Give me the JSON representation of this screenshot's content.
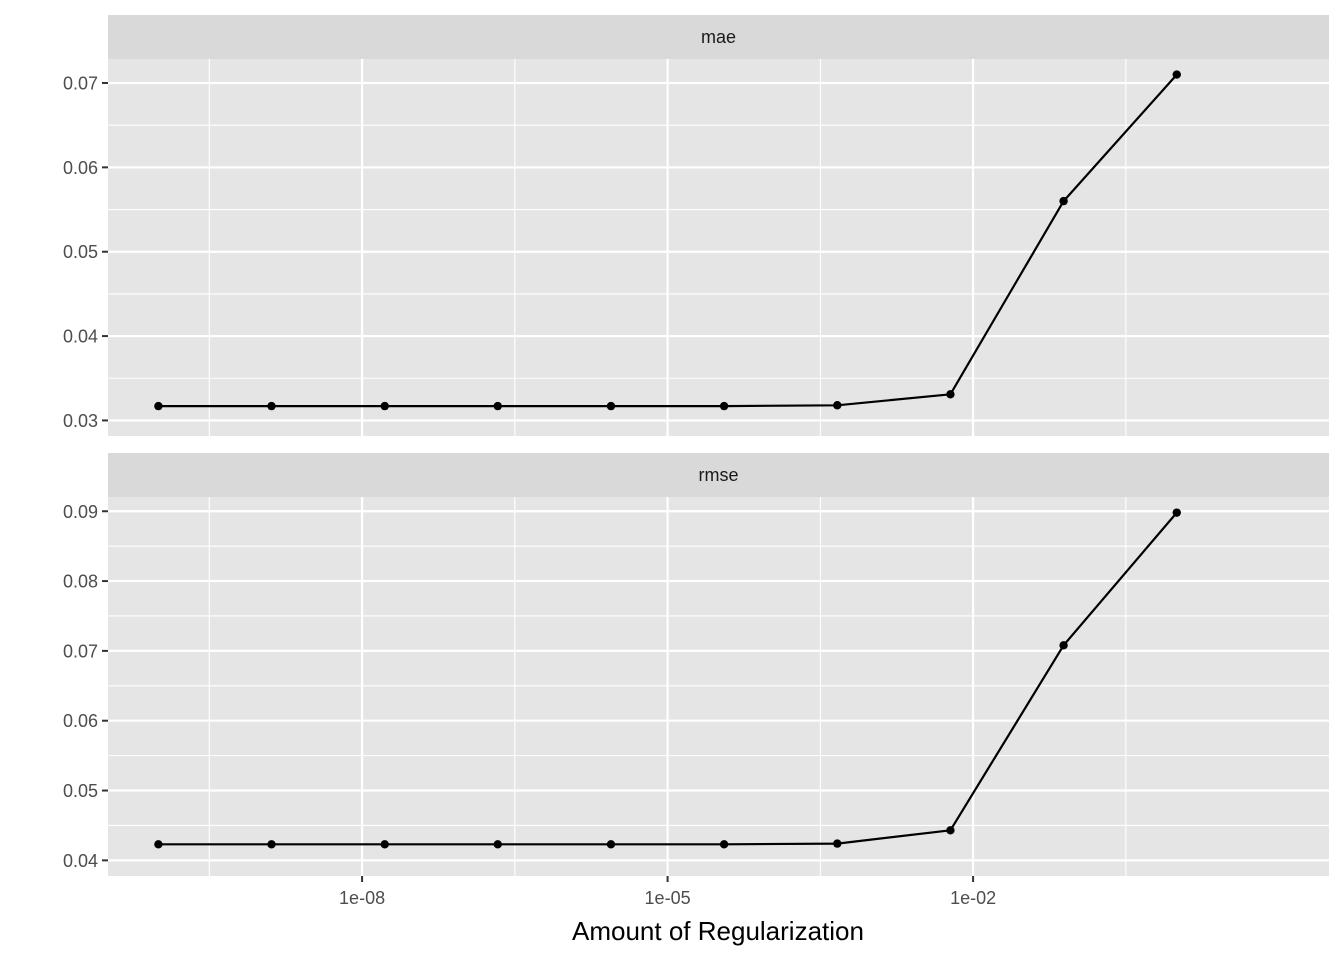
{
  "chart_data": {
    "type": "line",
    "facet_layout": "stacked vertically, shared x axis",
    "xlabel": "Amount of Regularization",
    "ylabel": "",
    "x_scale": "log10",
    "x_ticks": [
      1e-08,
      1e-05,
      0.01
    ],
    "x_tick_labels": [
      "1e-08",
      "1e-05",
      "1e-02"
    ],
    "xlim": [
      1e-10,
      10
    ],
    "x": [
      1e-10,
      1.29e-09,
      1.67e-08,
      2.15e-07,
      2.78e-06,
      3.59e-05,
      0.000464,
      0.00599,
      0.0774,
      1.0
    ],
    "grid": true,
    "legend": "none",
    "colors": {
      "panel_background": "#e5e5e5",
      "strip_background": "#d9d9d9",
      "grid": "#ffffff",
      "line": "#000000",
      "point": "#000000"
    },
    "panels": [
      {
        "strip_label": "mae",
        "ylim": [
          0.03,
          0.071
        ],
        "y_ticks": [
          0.03,
          0.04,
          0.05,
          0.06,
          0.07
        ],
        "y_tick_labels": [
          "0.03",
          "0.04",
          "0.05",
          "0.06",
          "0.07"
        ],
        "values": [
          0.0317,
          0.0317,
          0.0317,
          0.0317,
          0.0317,
          0.0317,
          0.0318,
          0.0331,
          0.056,
          0.071
        ]
      },
      {
        "strip_label": "rmse",
        "ylim": [
          0.04,
          0.0898
        ],
        "y_ticks": [
          0.04,
          0.05,
          0.06,
          0.07,
          0.08,
          0.09
        ],
        "y_tick_labels": [
          "0.04",
          "0.05",
          "0.06",
          "0.07",
          "0.08",
          "0.09"
        ],
        "values": [
          0.0423,
          0.0423,
          0.0423,
          0.0423,
          0.0423,
          0.0423,
          0.0424,
          0.0443,
          0.0708,
          0.0898
        ]
      }
    ]
  }
}
